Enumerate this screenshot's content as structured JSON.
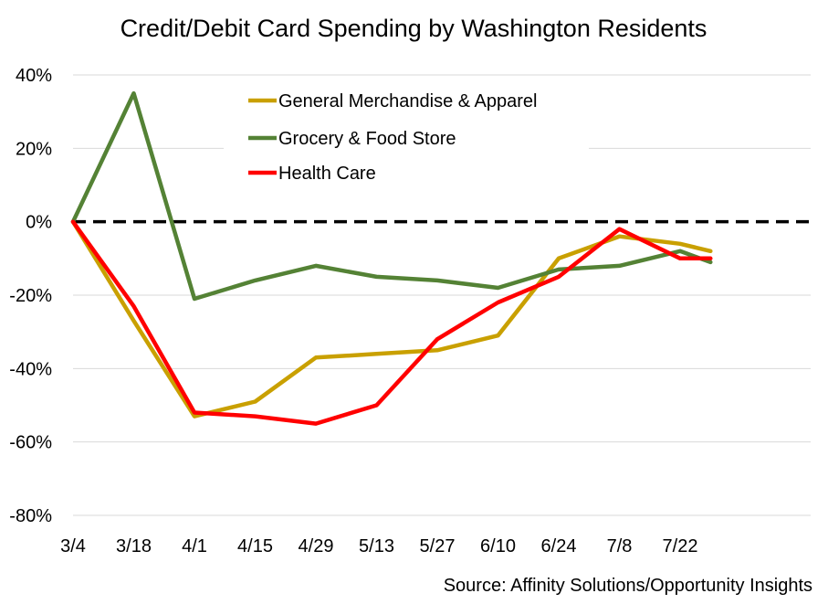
{
  "chart_data": {
    "type": "line",
    "title": "Credit/Debit Card Spending by Washington Residents",
    "source": "Source: Affinity Solutions/Opportunity Insights",
    "xlabel": "",
    "ylabel": "",
    "categories": [
      "3/4",
      "3/18",
      "4/1",
      "4/15",
      "4/29",
      "5/13",
      "5/27",
      "6/10",
      "6/24",
      "7/8",
      "7/22"
    ],
    "x_tick_labels": [
      "3/4",
      "3/18",
      "4/1",
      "4/15",
      "4/29",
      "5/13",
      "5/27",
      "6/10",
      "6/24",
      "7/8",
      "7/22"
    ],
    "ylim": [
      -0.8,
      0.4
    ],
    "y_ticks": [
      0.4,
      0.2,
      0,
      -0.2,
      -0.4,
      -0.6,
      -0.8
    ],
    "y_tick_labels": [
      "40%",
      "20%",
      "0%",
      "-20%",
      "-40%",
      "-60%",
      "-80%"
    ],
    "grid": "horizontal",
    "legend_position": "top-center",
    "reference_line": {
      "y": 0,
      "style": "dashed",
      "color": "#000000"
    },
    "series": [
      {
        "name": "General Merchandise & Apparel",
        "color": "#C9A000",
        "x": [
          "3/4",
          "3/18",
          "4/1",
          "4/15",
          "4/29",
          "5/13",
          "5/27",
          "6/10",
          "6/24",
          "7/8",
          "7/22",
          "7/29"
        ],
        "values": [
          0.0,
          -0.27,
          -0.53,
          -0.49,
          -0.37,
          -0.36,
          -0.35,
          -0.31,
          -0.1,
          -0.04,
          -0.06,
          -0.08
        ]
      },
      {
        "name": "Grocery & Food Store",
        "color": "#548235",
        "x": [
          "3/4",
          "3/18",
          "4/1",
          "4/15",
          "4/29",
          "5/13",
          "5/27",
          "6/10",
          "6/24",
          "7/8",
          "7/22",
          "7/29"
        ],
        "values": [
          0.0,
          0.35,
          -0.21,
          -0.16,
          -0.12,
          -0.15,
          -0.16,
          -0.18,
          -0.13,
          -0.12,
          -0.08,
          -0.11
        ]
      },
      {
        "name": "Health Care",
        "color": "#FF0000",
        "x": [
          "3/4",
          "3/18",
          "4/1",
          "4/15",
          "4/29",
          "5/13",
          "5/27",
          "6/10",
          "6/24",
          "7/8",
          "7/22",
          "7/29"
        ],
        "values": [
          0.0,
          -0.23,
          -0.52,
          -0.53,
          -0.55,
          -0.5,
          -0.32,
          -0.22,
          -0.15,
          -0.02,
          -0.1,
          -0.1
        ]
      }
    ]
  }
}
